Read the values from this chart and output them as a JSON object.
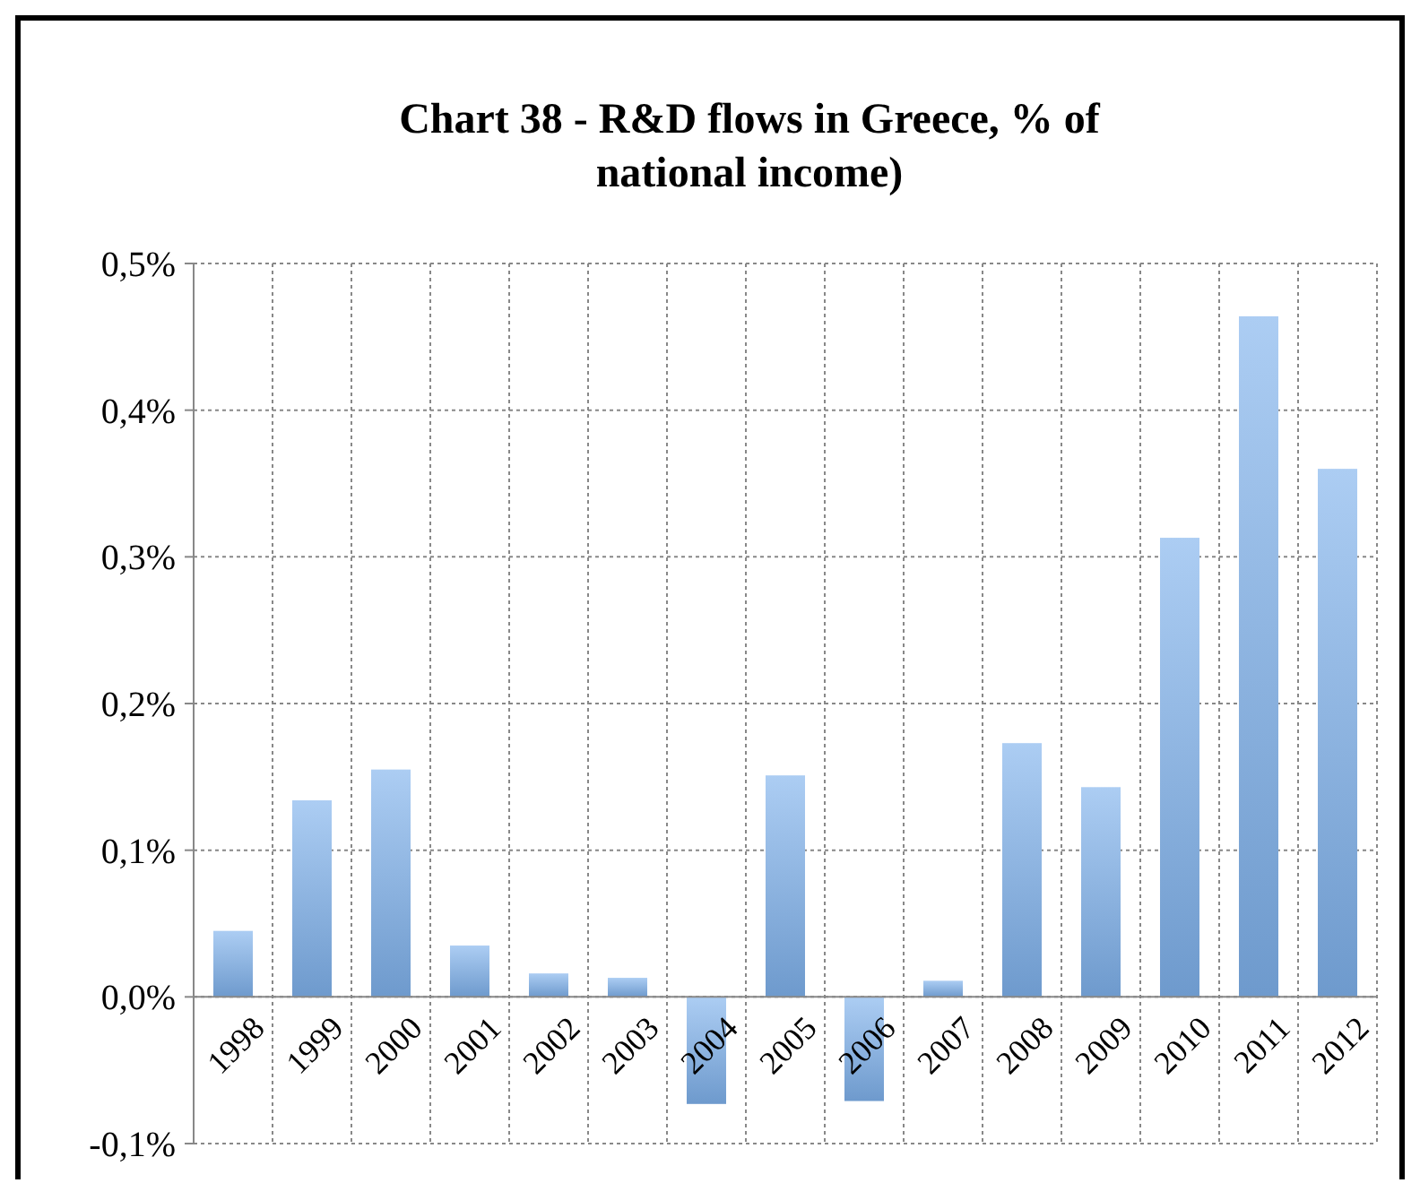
{
  "chart_data": {
    "type": "bar",
    "title": "Chart 38 - R&D flows in Greece, % of national income)",
    "categories": [
      "1998",
      "1999",
      "2000",
      "2001",
      "2002",
      "2003",
      "2004",
      "2005",
      "2006",
      "2007",
      "2008",
      "2009",
      "2010",
      "2011",
      "2012"
    ],
    "values": [
      0.045,
      0.134,
      0.155,
      0.035,
      0.016,
      0.013,
      -0.073,
      0.151,
      -0.071,
      0.011,
      0.173,
      0.143,
      0.313,
      0.464,
      0.36
    ],
    "color": "#7fb2ec",
    "ylim": [
      -0.1,
      0.5
    ],
    "yticks": [
      {
        "value": -0.1,
        "label": "-0,1%"
      },
      {
        "value": 0,
        "label": "0,0%"
      },
      {
        "value": 0.1,
        "label": "0,1%"
      },
      {
        "value": 0.2,
        "label": "0,2%"
      },
      {
        "value": 0.3,
        "label": "0,3%"
      },
      {
        "value": 0.4,
        "label": "0,4%"
      },
      {
        "value": 0.5,
        "label": "0,5%"
      }
    ],
    "grid": true
  }
}
